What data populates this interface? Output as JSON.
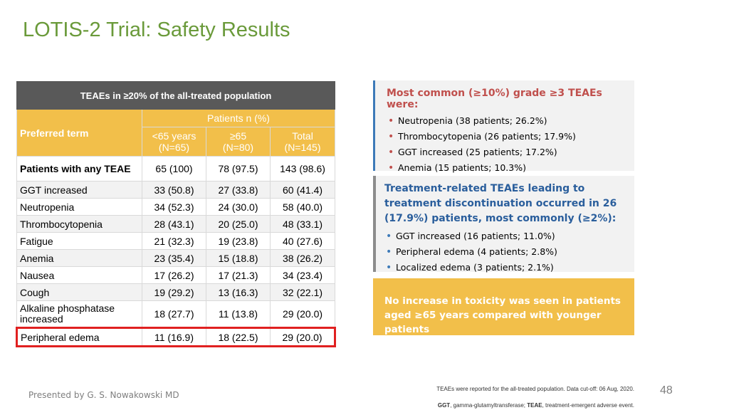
{
  "title": "LOTIS-2 Trial: Safety Results",
  "table": {
    "caption": "TEAEs in ≥20% of the all-treated population",
    "group_header": "Patients n (%)",
    "col_term": "Preferred term",
    "cols": [
      {
        "line1": "<65 years",
        "line2": "(N=65)"
      },
      {
        "line1": "≥65",
        "line2": "(N=80)"
      },
      {
        "line1": "Total",
        "line2": "(N=145)"
      }
    ],
    "rows": [
      {
        "term": "Patients with any TEAE",
        "v": [
          "65 (100)",
          "78 (97.5)",
          "143 (98.6)"
        ]
      },
      {
        "term": "GGT increased",
        "v": [
          "33 (50.8)",
          "27 (33.8)",
          "60 (41.4)"
        ]
      },
      {
        "term": "Neutropenia",
        "v": [
          "34 (52.3)",
          "24 (30.0)",
          "58 (40.0)"
        ]
      },
      {
        "term": "Thrombocytopenia",
        "v": [
          "28 (43.1)",
          "20 (25.0)",
          "48 (33.1)"
        ]
      },
      {
        "term": "Fatigue",
        "v": [
          "21 (32.3)",
          "19 (23.8)",
          "40 (27.6)"
        ]
      },
      {
        "term": "Anemia",
        "v": [
          "23 (35.4)",
          "15 (18.8)",
          "38 (26.2)"
        ]
      },
      {
        "term": "Nausea",
        "v": [
          "17 (26.2)",
          "17 (21.3)",
          "34 (23.4)"
        ]
      },
      {
        "term": "Cough",
        "v": [
          "19 (29.2)",
          "13 (16.3)",
          "32 (22.1)"
        ]
      },
      {
        "term": "Alkaline phosphatase increased",
        "v": [
          "18 (27.7)",
          "11 (13.8)",
          "29 (20.0)"
        ]
      },
      {
        "term": "Peripheral edema",
        "v": [
          "11 (16.9)",
          "18 (22.5)",
          "29 (20.0)"
        ]
      }
    ]
  },
  "box1": {
    "heading": "Most common (≥10%) grade ≥3 TEAEs were:",
    "items": [
      "Neutropenia (38 patients; 26.2%)",
      "Thrombocytopenia (26 patients; 17.9%)",
      "GGT increased (25 patients; 17.2%)",
      "Anemia (15 patients; 10.3%)"
    ]
  },
  "box2": {
    "heading": "Treatment-related TEAEs leading to treatment discontinuation occurred in 26 (17.9%) patients, most commonly (≥2%):",
    "items": [
      "GGT increased (16 patients; 11.0%)",
      "Peripheral edema (4 patients; 2.8%)",
      "Localized edema (3 patients; 2.1%)"
    ]
  },
  "box3": {
    "text": "No increase in toxicity was seen in patients aged ≥65 years compared with younger patients"
  },
  "footer": {
    "presenter": "Presented by G. S. Nowakowski MD",
    "page": "48",
    "note1": "TEAEs were reported for the all-treated population. Data cut-off: 06 Aug, 2020.",
    "abbr1_bold": "GGT",
    "abbr1": ", gamma-glutamyltransferase; ",
    "abbr2_bold": "TEAE",
    "abbr2": ", treatment-emergent adverse event."
  },
  "colors": {
    "title_green": "#6a9a3a",
    "table_header_gray": "#595959",
    "gold": "#f2bf4a",
    "red_highlight": "#e02020",
    "heading_red": "#c0504d",
    "heading_blue": "#2a5e9c"
  }
}
